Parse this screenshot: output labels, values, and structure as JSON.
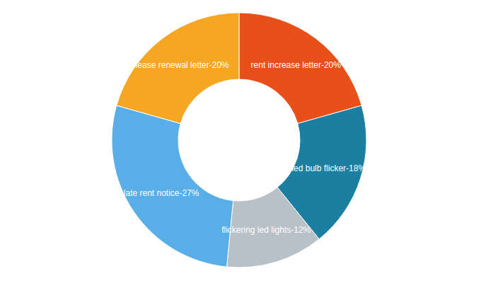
{
  "chart_data": {
    "type": "pie",
    "categories": [
      "rent increase letter",
      "led bulb flicker",
      "flickering led lights",
      "late rent notice",
      "lease renewal letter"
    ],
    "values": [
      20,
      18,
      12,
      27,
      20
    ],
    "value_labels": [
      "rent increase letter-20%",
      "led bulb flicker-18%",
      "flickering led lights-12%",
      "late rent notice-27%",
      "lease renewal letter-20%"
    ],
    "colors": [
      "#e8501a",
      "#1a7fa0",
      "#b8c0c8",
      "#5aaee8",
      "#f5a623"
    ],
    "data_labels": true
  }
}
